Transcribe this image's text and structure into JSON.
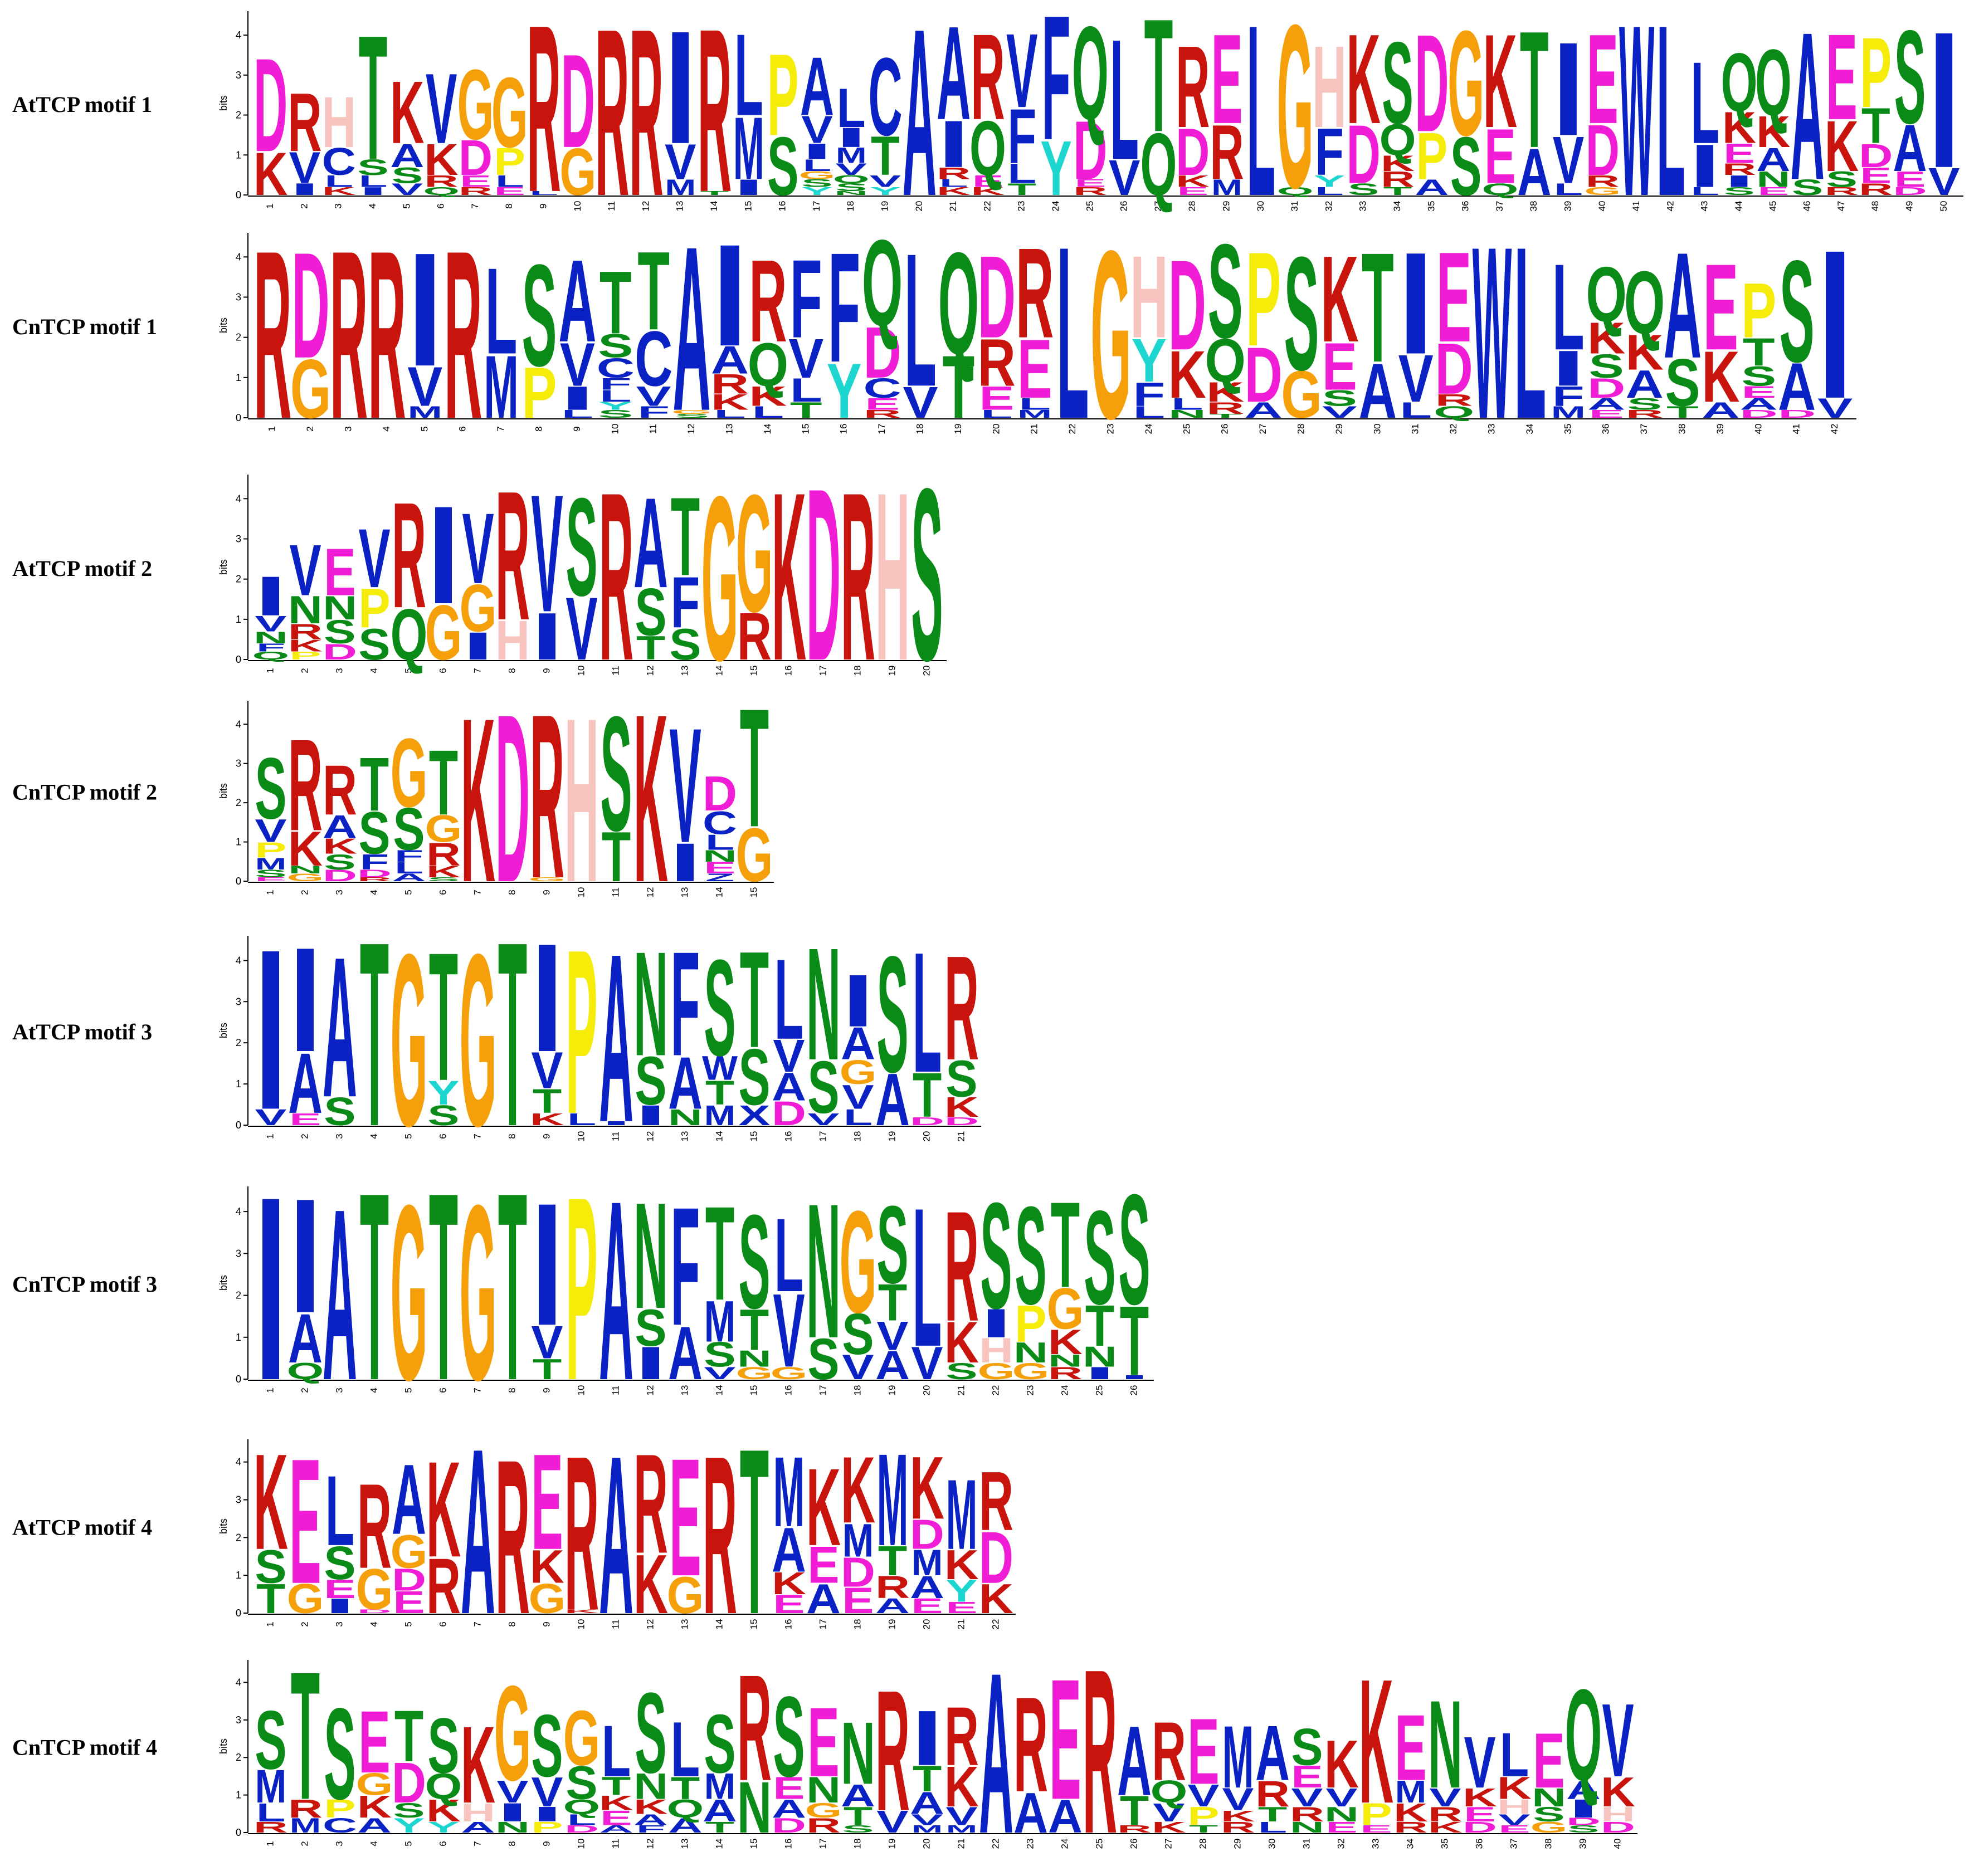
{
  "colors": {
    "A": "#0a22c4",
    "C": "#0a22c4",
    "F": "#0a22c4",
    "I": "#0a22c4",
    "L": "#0a22c4",
    "M": "#0a22c4",
    "V": "#0a22c4",
    "W": "#0a22c4",
    "D": "#f01cd6",
    "E": "#f01cd6",
    "R": "#c8140c",
    "K": "#c8140c",
    "G": "#f5a00a",
    "S": "#0a8a16",
    "T": "#0a8a16",
    "N": "#0a8a16",
    "Q": "#0a8a16",
    "P": "#f5ec0a",
    "H": "#f8c4c0",
    "Y": "#1ed6d0",
    "X": "#0a22c4"
  },
  "axis_label": "bits",
  "y_ticks": [
    "0",
    "1",
    "2",
    "3",
    "4"
  ],
  "motifs": [
    {
      "label": "AtTCP motif 1",
      "columns": [
        [
          "D:2.4",
          "K:1.1"
        ],
        [
          "R:1.5",
          "V:0.8",
          "I:0.3"
        ],
        [
          "H:1.3",
          "C:0.7",
          "L:0.3",
          "K:0.2"
        ],
        [
          "T:3.2",
          "S:0.4",
          "L:0.3",
          "I:0.2"
        ],
        [
          "K:1.6",
          "A:0.6",
          "S:0.4",
          "V:0.3"
        ],
        [
          "V:1.8",
          "K:0.8",
          "R:0.3",
          "Q:0.2"
        ],
        [
          "G:1.8",
          "D:0.9",
          "E:0.3",
          "R:0.2"
        ],
        [
          "G:1.8",
          "P:0.7",
          "L:0.3",
          "E:0.2"
        ],
        [
          "R:4.3",
          "L:0.1"
        ],
        [
          "D:2.4",
          "G:1.2"
        ],
        [
          "R:4.3"
        ],
        [
          "R:4.3"
        ],
        [
          "I:2.9",
          "V:0.9",
          "M:0.4"
        ],
        [
          "R:4.2",
          "T:0.1"
        ],
        [
          "L:2.1",
          "M:1.6",
          "I:0.4"
        ],
        [
          "P:2.1",
          "S:1.5"
        ],
        [
          "A:1.5",
          "V:0.7",
          "I:0.4",
          "L:0.3",
          "Y:0.2",
          "S:0.2",
          "G:0.2"
        ],
        [
          "L:1.0",
          "I:0.5",
          "M:0.4",
          "V:0.3",
          "S:0.2",
          "Q:0.2",
          "N:0.1"
        ],
        [
          "C:2.0",
          "T:1.0",
          "V:0.3",
          "Y:0.2"
        ],
        [
          "A:4.3"
        ],
        [
          "A:2.4",
          "I:1.2",
          "R:0.3",
          "K:0.2",
          "L:0.2"
        ],
        [
          "R:2.2",
          "Q:1.4",
          "E:0.3",
          "K:0.2"
        ],
        [
          "V:1.9",
          "F:1.4",
          "L:0.5",
          "T:0.3"
        ],
        [
          "F:3.2",
          "Y:1.4"
        ],
        [
          "Q:2.4",
          "D:1.5",
          "R:0.2",
          "E:0.2"
        ],
        [
          "L:3.1",
          "V:0.9"
        ],
        [
          "T:2.9",
          "Q:1.6"
        ],
        [
          "R:2.1",
          "D:1.2",
          "K:0.3",
          "E:0.2"
        ],
        [
          "E:2.3",
          "R:1.4",
          "M:0.4"
        ],
        [
          "L:4.4"
        ],
        [
          "G:4.2",
          "Q:0.2"
        ],
        [
          "H:2.1",
          "F:1.2",
          "Y:0.3",
          "L:0.2"
        ],
        [
          "K:2.3",
          "D:1.5",
          "S:0.3"
        ],
        [
          "S:2.1",
          "Q:0.8",
          "R:0.4",
          "K:0.4",
          "T:0.2"
        ],
        [
          "D:2.5",
          "P:1.2",
          "A:0.4"
        ],
        [
          "G:2.7",
          "S:1.5"
        ],
        [
          "K:2.4",
          "E:1.4",
          "Q:0.3"
        ],
        [
          "T:3.0",
          "A:1.2"
        ],
        [
          "I:2.4",
          "V:1.2",
          "L:0.3"
        ],
        [
          "E:2.3",
          "D:1.3",
          "R:0.3",
          "G:0.2"
        ],
        [
          "W:4.4"
        ],
        [
          "L:4.4"
        ],
        [
          "L:2.1",
          "I:1.1",
          "L:0.2"
        ],
        [
          "Q:1.5",
          "K:0.8",
          "E:0.5",
          "I:0.3",
          "R:0.3",
          "S:0.2"
        ],
        [
          "Q:1.7",
          "K:0.8",
          "A:0.6",
          "N:0.4",
          "E:0.2"
        ],
        [
          "A:3.8",
          "S:0.4"
        ],
        [
          "E:2.2",
          "K:1.3",
          "S:0.4",
          "R:0.2"
        ],
        [
          "P:1.8",
          "T:0.9",
          "D:0.6",
          "E:0.4",
          "R:0.3"
        ],
        [
          "S:2.4",
          "A:1.2",
          "E:0.4",
          "D:0.2"
        ],
        [
          "I:3.5",
          "V:0.7"
        ]
      ]
    },
    {
      "label": "CnTCP motif 1",
      "columns": [
        [
          "R:4.3"
        ],
        [
          "D:2.7",
          "G:1.5"
        ],
        [
          "R:4.3"
        ],
        [
          "R:4.3"
        ],
        [
          "I:2.9",
          "V:1.0",
          "M:0.3"
        ],
        [
          "R:4.3"
        ],
        [
          "L:2.2",
          "M:1.6"
        ],
        [
          "S:2.6",
          "P:1.3"
        ],
        [
          "A:2.1",
          "V:1.1",
          "I:0.6",
          "L:0.2"
        ],
        [
          "T:1.6",
          "S:0.6",
          "C:0.5",
          "L:0.3",
          "F:0.3",
          "S:0.2",
          "Y:0.2"
        ],
        [
          "T:2.0",
          "C:1.4",
          "V:0.5",
          "F:0.3"
        ],
        [
          "A:4.2",
          "S:0.1",
          "G:0.1"
        ],
        [
          "I:2.6",
          "A:0.7",
          "R:0.5",
          "K:0.4",
          "L:0.2"
        ],
        [
          "R:2.1",
          "Q:1.1",
          "K:0.5",
          "L:0.3"
        ],
        [
          "F:2.0",
          "V:1.0",
          "L:0.6",
          "T:0.4"
        ],
        [
          "F:2.8",
          "Y:1.4"
        ],
        [
          "Q:2.2",
          "D:1.3",
          "C:0.5",
          "E:0.3",
          "R:0.2"
        ],
        [
          "L:3.4",
          "V:0.8"
        ],
        [
          "Q:2.6",
          "T:1.6"
        ],
        [
          "D:2.1",
          "R:1.2",
          "E:0.6",
          "L:0.2"
        ],
        [
          "R:2.3",
          "E:1.5",
          "L:0.3",
          "M:0.2"
        ],
        [
          "L:4.4"
        ],
        [
          "G:4.3"
        ],
        [
          "H:2.1",
          "Y:1.1",
          "F:0.6",
          "L:0.3"
        ],
        [
          "D:2.3",
          "K:1.2",
          "L:0.3",
          "N:0.2"
        ],
        [
          "S:2.4",
          "Q:1.1",
          "K:0.5",
          "R:0.3",
          "T:0.1"
        ],
        [
          "P:2.4",
          "D:1.4",
          "A:0.4"
        ],
        [
          "S:2.9",
          "G:1.2"
        ],
        [
          "K:2.2",
          "E:1.2",
          "S:0.4",
          "V:0.3"
        ],
        [
          "T:2.8",
          "A:1.4"
        ],
        [
          "I:2.6",
          "V:1.2",
          "L:0.4"
        ],
        [
          "E:2.3",
          "D:1.3",
          "Q:0.3",
          "R:0.3"
        ],
        [
          "W:4.4"
        ],
        [
          "L:4.4"
        ],
        [
          "L:2.2",
          "I:0.9",
          "F:0.5",
          "M:0.3"
        ],
        [
          "Q:1.4",
          "K:0.8",
          "S:0.6",
          "D:0.5",
          "A:0.3",
          "E:0.2"
        ],
        [
          "Q:1.6",
          "K:0.9",
          "A:0.7",
          "S:0.3",
          "R:0.2"
        ],
        [
          "A:2.7",
          "S:1.2",
          "T:0.3"
        ],
        [
          "E:2.2",
          "K:1.3",
          "A:0.4"
        ],
        [
          "P:1.4",
          "T:0.7",
          "S:0.5",
          "A:0.3",
          "E:0.3",
          "D:0.2"
        ],
        [
          "S:2.6",
          "A:1.2",
          "D:0.2"
        ],
        [
          "I:3.8",
          "V:0.5"
        ]
      ]
    },
    {
      "label": "AtTCP motif 2",
      "columns": [
        [
          "I:1.0",
          "V:0.4",
          "N:0.3",
          "Q:0.2",
          "F:0.2"
        ],
        [
          "V:1.3",
          "N:0.7",
          "R:0.4",
          "P:0.2",
          "K:0.3"
        ],
        [
          "E:1.2",
          "S:0.6",
          "N:0.6",
          "D:0.4"
        ],
        [
          "V:1.5",
          "P:1.0",
          "S:0.8"
        ],
        [
          "R:2.7",
          "Q:1.3"
        ],
        [
          "I:2.5",
          "G:1.4"
        ],
        [
          "V:1.8",
          "G:1.2",
          "I:0.7"
        ],
        [
          "R:3.3",
          "H:1.0"
        ],
        [
          "V:3.0",
          "I:1.2"
        ],
        [
          "S:2.5",
          "V:1.6"
        ],
        [
          "R:4.3"
        ],
        [
          "A:2.3",
          "S:1.2",
          "T:0.6"
        ],
        [
          "T:2.0",
          "F:1.3",
          "S:0.8"
        ],
        [
          "G:4.2"
        ],
        [
          "G:3.0",
          "R:1.2"
        ],
        [
          "K:4.3"
        ],
        [
          "D:4.4"
        ],
        [
          "R:4.3"
        ],
        [
          "H:4.3"
        ],
        [
          "S:4.4"
        ]
      ]
    },
    {
      "label": "CnTCP motif 2",
      "columns": [
        [
          "S:1.6",
          "V:0.6",
          "P:0.4",
          "M:0.3",
          "S:0.2",
          "E:0.1"
        ],
        [
          "R:2.4",
          "K:0.9",
          "G:0.2",
          "N:0.2"
        ],
        [
          "R:1.3",
          "A:0.6",
          "S:0.4",
          "K:0.4",
          "D:0.3"
        ],
        [
          "T:1.4",
          "S:1.1",
          "F:0.4",
          "D:0.2",
          "R:0.1"
        ],
        [
          "G:1.8",
          "S:1.1",
          "L:0.3",
          "F:0.3",
          "A:0.2"
        ],
        [
          "T:1.7",
          "G:0.7",
          "R:0.6",
          "K:0.3",
          "S:0.1"
        ],
        [
          "K:4.3"
        ],
        [
          "D:4.4"
        ],
        [
          "R:4.3",
          "G:0.1"
        ],
        [
          "H:4.3"
        ],
        [
          "S:3.0",
          "T:1.3"
        ],
        [
          "K:4.4"
        ],
        [
          "V:3.0",
          "I:1.0"
        ],
        [
          "D:0.9",
          "C:0.6",
          "L:0.4",
          "E:0.3",
          "N:0.3",
          "Z:0.2"
        ],
        [
          "T:3.1",
          "G:1.4"
        ]
      ]
    },
    {
      "label": "AtTCP motif 3",
      "columns": [
        [
          "I:4.0",
          "V:0.4"
        ],
        [
          "I:2.6",
          "A:1.5",
          "E:0.3"
        ],
        [
          "A:3.5",
          "S:0.7"
        ],
        [
          "T:4.6"
        ],
        [
          "G:4.3"
        ],
        [
          "T:3.2",
          "Y:0.6",
          "S:0.5"
        ],
        [
          "G:4.3"
        ],
        [
          "T:4.6"
        ],
        [
          "I:2.7",
          "V:0.9",
          "T:0.6",
          "K:0.3"
        ],
        [
          "P:4.1",
          "L:0.3"
        ],
        [
          "A:4.2",
          "I:0.1"
        ],
        [
          "N:2.6",
          "S:1.2",
          "I:0.5"
        ],
        [
          "F:2.6",
          "A:1.3",
          "N:0.4"
        ],
        [
          "S:2.4",
          "T:0.6",
          "W:0.6",
          "M:0.5"
        ],
        [
          "T:2.4",
          "S:1.4",
          "X:0.5"
        ],
        [
          "L:2.0",
          "V:0.8",
          "A:0.7",
          "D:0.6"
        ],
        [
          "N:2.8",
          "S:1.3",
          "V:0.3"
        ],
        [
          "I:1.3",
          "A:0.8",
          "V:0.6",
          "G:0.6",
          "L:0.4"
        ],
        [
          "S:2.9",
          "A:1.3"
        ],
        [
          "L:3.0",
          "T:1.1",
          "D:0.2"
        ],
        [
          "R:2.6",
          "S:0.9",
          "K:0.5",
          "D:0.2"
        ]
      ]
    },
    {
      "label": "CnTCP motif 3",
      "columns": [
        [
          "I:4.5"
        ],
        [
          "I:2.8",
          "A:1.2",
          "Q:0.4"
        ],
        [
          "A:4.2"
        ],
        [
          "T:4.6"
        ],
        [
          "G:4.3"
        ],
        [
          "T:4.6"
        ],
        [
          "G:4.3"
        ],
        [
          "T:4.6"
        ],
        [
          "I:3.0",
          "V:0.8",
          "T:0.5"
        ],
        [
          "P:4.5"
        ],
        [
          "A:4.4"
        ],
        [
          "N:2.6",
          "I:0.8",
          "S:0.9"
        ],
        [
          "F:2.9",
          "A:1.3"
        ],
        [
          "T:2.3",
          "M:1.0",
          "S:0.6",
          "V:0.3"
        ],
        [
          "S:2.3",
          "T:1.0",
          "N:0.4",
          "G:0.3"
        ],
        [
          "V:1.8",
          "L:1.8",
          "G:0.3"
        ],
        [
          "N:3.3",
          "S:1.0"
        ],
        [
          "G:2.5",
          "S:1.0",
          "V:0.6"
        ],
        [
          "S:1.9",
          "T:0.9",
          "A:0.7",
          "V:0.7"
        ],
        [
          "L:3.4",
          "V:0.8"
        ],
        [
          "R:2.7",
          "K:1.0",
          "S:0.4"
        ],
        [
          "S:2.6",
          "I:0.7",
          "H:0.6",
          "G:0.4"
        ],
        [
          "S:2.4",
          "P:0.9",
          "N:0.5",
          "G:0.4"
        ],
        [
          "T:2.1",
          "G:1.0",
          "K:0.6",
          "R:0.3",
          "N:0.3"
        ],
        [
          "S:2.3",
          "T:1.0",
          "N:0.5",
          "I:0.3"
        ],
        [
          "S:2.7",
          "T:1.7",
          "I:0.1"
        ]
      ]
    },
    {
      "label": "AtTCP motif 4",
      "columns": [
        [
          "K:2.6",
          "T:0.8",
          "S:0.9"
        ],
        [
          "E:3.4",
          "G:0.8"
        ],
        [
          "L:1.9",
          "S:0.9",
          "I:0.4",
          "E:0.5"
        ],
        [
          "R:2.3",
          "G:1.1",
          "D:0.1"
        ],
        [
          "A:1.9",
          "G:0.9",
          "E:0.6",
          "D:0.6"
        ],
        [
          "K:2.6",
          "R:1.5"
        ],
        [
          "A:4.5"
        ],
        [
          "R:4.2"
        ],
        [
          "E:2.6",
          "K:0.9",
          "G:0.8"
        ],
        [
          "R:4.2",
          "K:0.1"
        ],
        [
          "A:4.3"
        ],
        [
          "R:2.7",
          "K:1.6"
        ],
        [
          "E:3.2",
          "G:1.0"
        ],
        [
          "R:4.3"
        ],
        [
          "T:4.5"
        ],
        [
          "M:1.9",
          "A:1.2",
          "E:0.5",
          "K:0.6"
        ],
        [
          "K:2.1",
          "E:1.0",
          "A:0.8"
        ],
        [
          "K:1.8",
          "M:0.9",
          "E:0.7",
          "D:0.8"
        ],
        [
          "M:2.5",
          "T:0.8",
          "R:0.6",
          "A:0.4"
        ],
        [
          "K:1.7",
          "M:0.7",
          "D:0.8",
          "A:0.6",
          "E:0.4"
        ],
        [
          "M:1.9",
          "Y:0.6",
          "K:0.8",
          "E:0.3"
        ],
        [
          "R:1.6",
          "D:1.4",
          "K:0.8"
        ]
      ]
    },
    {
      "label": "CnTCP motif 4",
      "columns": [
        [
          "S:1.6",
          "M:0.9",
          "L:0.5",
          "R:0.3"
        ],
        [
          "T:3.5",
          "R:0.5",
          "M:0.4"
        ],
        [
          "S:2.5",
          "P:0.5",
          "C:0.4"
        ],
        [
          "E:1.7",
          "K:0.6",
          "G:0.6",
          "A:0.4"
        ],
        [
          "T:1.4",
          "D:1.1",
          "Y:0.4",
          "S:0.4"
        ],
        [
          "S:1.5",
          "Q:0.7",
          "K:0.6",
          "Y:0.3"
        ],
        [
          "K:2.1",
          "H:0.5",
          "A:0.3"
        ],
        [
          "G:2.6",
          "V:0.6",
          "I:0.5",
          "N:0.3"
        ],
        [
          "S:1.7",
          "V:0.8",
          "I:0.4",
          "P:0.3"
        ],
        [
          "G:1.5",
          "S:0.9",
          "Q:0.4",
          "L:0.3",
          "D:0.2"
        ],
        [
          "L:1.4",
          "T:0.5",
          "E:0.4",
          "K:0.4",
          "A:0.2"
        ],
        [
          "S:2.2",
          "N:0.7",
          "K:0.4",
          "A:0.3",
          "F:0.2"
        ],
        [
          "L:1.5",
          "T:0.6",
          "Q:0.5",
          "A:0.4"
        ],
        [
          "S:1.6",
          "M:0.7",
          "A:0.6",
          "T:0.3"
        ],
        [
          "R:2.9",
          "N:1.4"
        ],
        [
          "S:2.2",
          "E:0.6",
          "D:0.4",
          "A:0.5"
        ],
        [
          "E:1.9",
          "N:0.7",
          "R:0.4",
          "G:0.4"
        ],
        [
          "N:1.7",
          "T:0.5",
          "A:0.6",
          "S:0.2"
        ],
        [
          "R:3.3",
          "V:0.6"
        ],
        [
          "I:1.5",
          "T:0.7",
          "A:0.6",
          "V:0.3",
          "M:0.2"
        ],
        [
          "R:1.6",
          "K:1.1",
          "V:0.5",
          "M:0.2"
        ],
        [
          "A:4.4"
        ],
        [
          "R:2.6",
          "A:1.1"
        ],
        [
          "E:3.3",
          "A:0.9"
        ],
        [
          "R:4.5"
        ],
        [
          "A:1.9",
          "T:0.8",
          "R:0.2"
        ],
        [
          "R:1.6",
          "Q:0.6",
          "V:0.5",
          "K:0.3"
        ],
        [
          "E:1.8",
          "V:0.6",
          "P:0.5",
          "T:0.2"
        ],
        [
          "M:1.7",
          "V:0.6",
          "R:0.3",
          "K:0.3"
        ],
        [
          "A:1.5",
          "R:0.7",
          "T:0.4",
          "L:0.3"
        ],
        [
          "S:1.0",
          "E:0.6",
          "V:0.5",
          "R:0.4",
          "N:0.3"
        ],
        [
          "K:1.3",
          "V:0.5",
          "N:0.4",
          "E:0.3"
        ],
        [
          "K:3.4",
          "P:0.6",
          "E:0.2"
        ],
        [
          "E:1.8",
          "M:0.6",
          "K:0.5",
          "R:0.3"
        ],
        [
          "N:2.4",
          "V:0.5",
          "R:0.4",
          "K:0.3"
        ],
        [
          "V:1.4",
          "K:0.5",
          "E:0.4",
          "D:0.3"
        ],
        [
          "L:1.2",
          "K:0.6",
          "H:0.4",
          "V:0.3",
          "E:0.2"
        ],
        [
          "E:1.5",
          "N:0.5",
          "S:0.4",
          "G:0.3"
        ],
        [
          "Q:2.5",
          "I:0.5",
          "A:0.5",
          "S:0.2",
          "D:0.2"
        ],
        [
          "V:2.0",
          "K:0.8",
          "H:0.4",
          "D:0.3"
        ]
      ]
    }
  ]
}
